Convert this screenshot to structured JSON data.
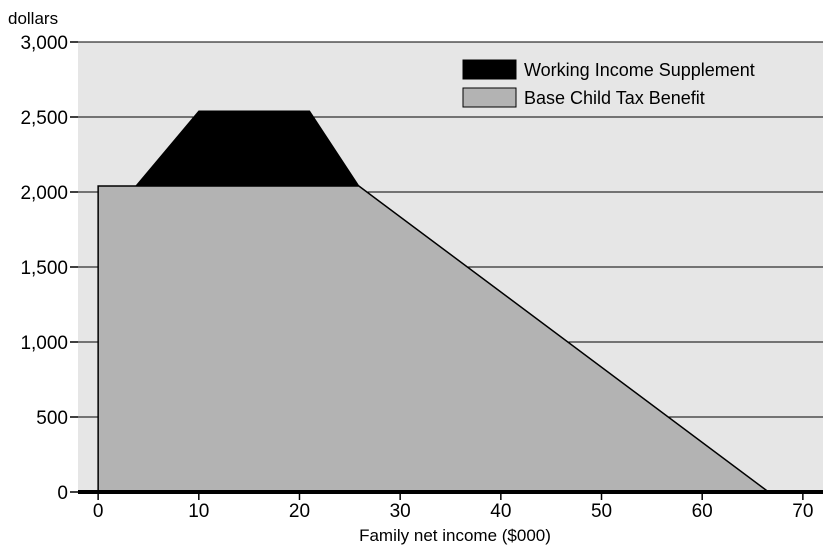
{
  "chart_data": {
    "type": "area",
    "title": "",
    "ylabel": "dollars",
    "xlabel": "Family net income ($000)",
    "xlim": [
      -2,
      72
    ],
    "ylim": [
      0,
      3000
    ],
    "x_ticks": [
      0,
      10,
      20,
      30,
      40,
      50,
      60,
      70
    ],
    "x_tick_labels": [
      "0",
      "10",
      "20",
      "30",
      "40",
      "50",
      "60",
      "70"
    ],
    "y_ticks": [
      0,
      500,
      1000,
      1500,
      2000,
      2500,
      3000
    ],
    "y_tick_labels": [
      "0",
      "500",
      "1,000",
      "1,500",
      "2,000",
      "2,500",
      "3,000"
    ],
    "grid": "horizontal",
    "legend_position": "top-right",
    "plot_background": "#e6e6e6",
    "stacked": true,
    "series": [
      {
        "name": "Base Child Tax Benefit",
        "color": "#b3b3b3",
        "x": [
          0,
          0,
          3.75,
          10,
          21,
          25.9,
          66.6
        ],
        "y": [
          0,
          2040,
          2040,
          2040,
          2040,
          2040,
          0
        ]
      },
      {
        "name": "Working Income Supplement",
        "color": "#000000",
        "x": [
          3.75,
          10,
          21,
          25.9
        ],
        "y": [
          0,
          500,
          500,
          0
        ]
      }
    ],
    "legend_order": [
      "Working Income Supplement",
      "Base Child Tax Benefit"
    ]
  }
}
